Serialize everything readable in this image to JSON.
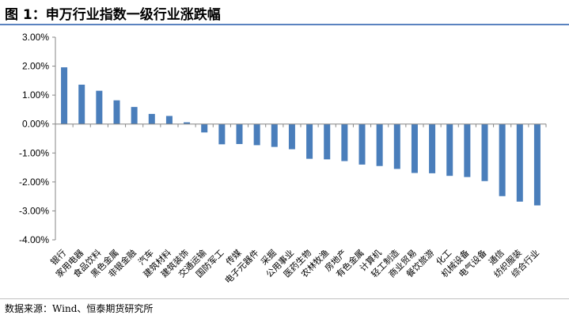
{
  "header": {
    "title": "图 1：申万行业指数一级行业涨跌幅"
  },
  "footer": {
    "source": "数据来源：Wind、恒泰期货研究所"
  },
  "colors": {
    "bar": "#4a7ebb",
    "title_rule": "#5a83c0",
    "axis": "#868686"
  },
  "chart_data": {
    "type": "bar",
    "title": "",
    "xlabel": "",
    "ylabel": "",
    "ylim": [
      -4,
      3
    ],
    "yticks": [
      3,
      2,
      1,
      0,
      -1,
      -2,
      -3,
      -4
    ],
    "ytick_labels": [
      "3.00%",
      "2.00%",
      "1.00%",
      "0.00%",
      "-1.00%",
      "-2.00%",
      "-3.00%",
      "-4.00%"
    ],
    "unit": "%",
    "grid": false,
    "legend": "none",
    "categories": [
      "银行",
      "家用电器",
      "食品饮料",
      "黑色金属",
      "非银金融",
      "汽车",
      "建筑材料",
      "建筑装饰",
      "交通运输",
      "国防军工",
      "传媒",
      "电子元器件",
      "采掘",
      "公用事业",
      "医药生物",
      "农林牧渔",
      "房地产",
      "有色金属",
      "计算机",
      "轻工制造",
      "商业贸易",
      "餐饮旅游",
      "化工",
      "机械设备",
      "电气设备",
      "通信",
      "纺织服装",
      "综合行业"
    ],
    "values": [
      1.96,
      1.36,
      1.15,
      0.82,
      0.59,
      0.35,
      0.28,
      0.06,
      -0.29,
      -0.7,
      -0.69,
      -0.73,
      -0.79,
      -0.87,
      -1.2,
      -1.22,
      -1.28,
      -1.4,
      -1.45,
      -1.55,
      -1.69,
      -1.7,
      -1.79,
      -1.83,
      -1.97,
      -2.49,
      -2.68,
      -2.81
    ]
  }
}
